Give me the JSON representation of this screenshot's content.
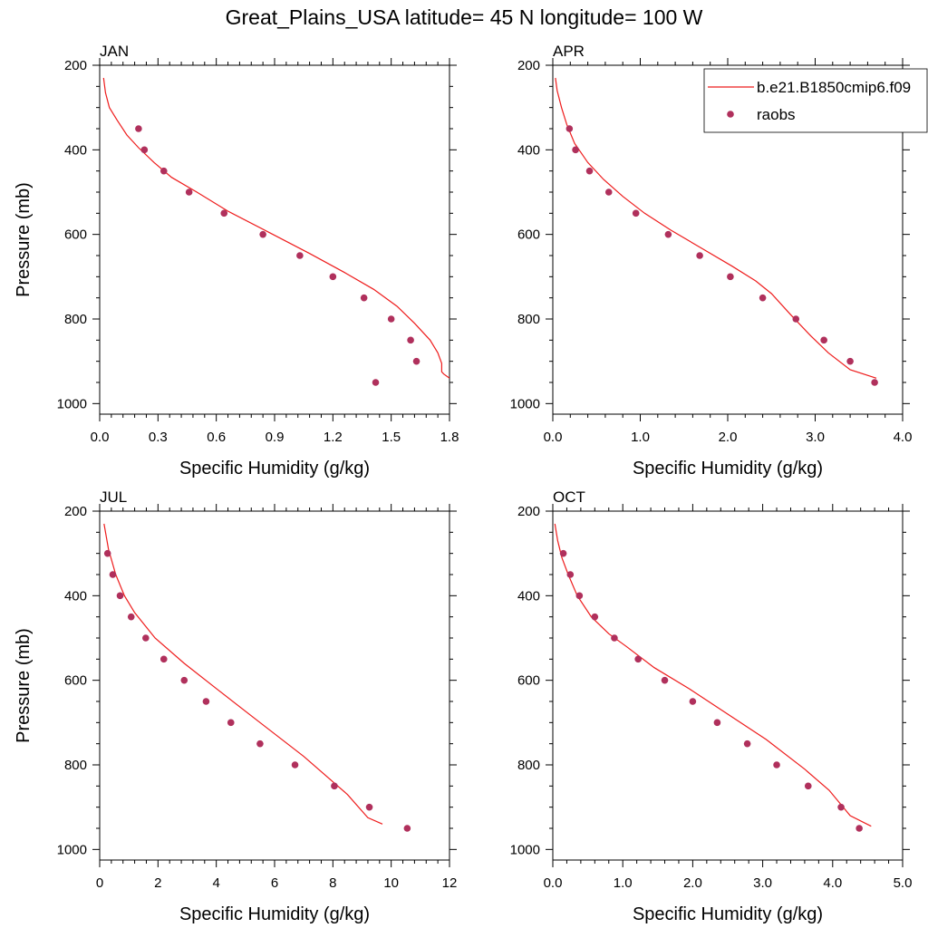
{
  "title": "Great_Plains_USA  latitude= 45 N longitude= 100 W",
  "legend": {
    "model_label": "b.e21.B1850cmip6.f09",
    "obs_label": "raobs"
  },
  "colors": {
    "model": "#ee1c1c",
    "obs": "#b0305c",
    "axis": "#000000"
  },
  "chart_data": [
    {
      "type": "line",
      "panel": "JAN",
      "xlabel": "Specific Humidity (g/kg)",
      "ylabel": "Pressure (mb)",
      "xlim": [
        0,
        1.8
      ],
      "ylim": [
        1025,
        200
      ],
      "y_inverted": true,
      "xticks": [
        0,
        0.3,
        0.6,
        0.9,
        1.2,
        1.5,
        1.8
      ],
      "xtick_labels": [
        "0.0",
        "0.3",
        "0.6",
        "0.9",
        "1.2",
        "1.5",
        "1.8"
      ],
      "yticks": [
        200,
        400,
        600,
        800,
        1000
      ],
      "ytick_labels": [
        "200",
        "400",
        "600",
        "800",
        "1000"
      ],
      "series": [
        {
          "name": "b.e21.B1850cmip6.f09",
          "kind": "line",
          "x": [
            0.02,
            0.03,
            0.05,
            0.09,
            0.14,
            0.2,
            0.28,
            0.37,
            0.5,
            0.66,
            0.87,
            1.08,
            1.26,
            1.41,
            1.53,
            1.62,
            1.7,
            1.74,
            1.76,
            1.76,
            1.77,
            1.8
          ],
          "y": [
            230,
            265,
            300,
            330,
            365,
            395,
            430,
            465,
            500,
            545,
            595,
            645,
            690,
            730,
            770,
            810,
            850,
            880,
            905,
            925,
            930,
            940
          ]
        },
        {
          "name": "raobs",
          "kind": "scatter",
          "x": [
            0.2,
            0.23,
            0.33,
            0.46,
            0.64,
            0.84,
            1.03,
            1.2,
            1.36,
            1.5,
            1.6,
            1.63,
            1.42
          ],
          "y": [
            350,
            400,
            450,
            500,
            550,
            600,
            650,
            700,
            750,
            800,
            850,
            900,
            950
          ]
        }
      ]
    },
    {
      "type": "line",
      "panel": "APR",
      "xlabel": "Specific Humidity (g/kg)",
      "ylabel": "",
      "xlim": [
        0,
        4.0
      ],
      "ylim": [
        1025,
        200
      ],
      "y_inverted": true,
      "xticks": [
        0,
        1,
        2,
        3,
        4
      ],
      "xtick_labels": [
        "0.0",
        "1.0",
        "2.0",
        "3.0",
        "4.0"
      ],
      "yticks": [
        200,
        400,
        600,
        800,
        1000
      ],
      "ytick_labels": [
        "200",
        "400",
        "600",
        "800",
        "1000"
      ],
      "series": [
        {
          "name": "b.e21.B1850cmip6.f09",
          "kind": "line",
          "x": [
            0.03,
            0.05,
            0.1,
            0.16,
            0.25,
            0.4,
            0.58,
            0.8,
            1.05,
            1.35,
            1.72,
            2.05,
            2.32,
            2.5,
            2.72,
            2.95,
            3.15,
            3.4,
            3.7
          ],
          "y": [
            230,
            260,
            300,
            340,
            385,
            430,
            470,
            510,
            550,
            590,
            635,
            675,
            710,
            740,
            790,
            840,
            880,
            920,
            940
          ]
        },
        {
          "name": "raobs",
          "kind": "scatter",
          "x": [
            0.19,
            0.26,
            0.42,
            0.64,
            0.95,
            1.32,
            1.68,
            2.03,
            2.4,
            2.78,
            3.1,
            3.4,
            3.68
          ],
          "y": [
            350,
            400,
            450,
            500,
            550,
            600,
            650,
            700,
            750,
            800,
            850,
            900,
            950
          ]
        }
      ]
    },
    {
      "type": "line",
      "panel": "JUL",
      "xlabel": "Specific Humidity (g/kg)",
      "ylabel": "Pressure (mb)",
      "xlim": [
        0,
        12
      ],
      "ylim": [
        1025,
        200
      ],
      "y_inverted": true,
      "xticks": [
        0,
        2,
        4,
        6,
        8,
        10,
        12
      ],
      "xtick_labels": [
        "0",
        "2",
        "4",
        "6",
        "8",
        "10",
        "12"
      ],
      "yticks": [
        200,
        400,
        600,
        800,
        1000
      ],
      "ytick_labels": [
        "200",
        "400",
        "600",
        "800",
        "1000"
      ],
      "series": [
        {
          "name": "b.e21.B1850cmip6.f09",
          "kind": "line",
          "x": [
            0.15,
            0.3,
            0.55,
            0.85,
            1.2,
            1.9,
            2.9,
            4.1,
            5.5,
            7.0,
            8.5,
            9.2,
            9.7
          ],
          "y": [
            230,
            290,
            350,
            400,
            440,
            500,
            560,
            625,
            700,
            780,
            870,
            925,
            940
          ]
        },
        {
          "name": "raobs",
          "kind": "scatter",
          "x": [
            0.27,
            0.45,
            0.7,
            1.08,
            1.58,
            2.2,
            2.9,
            3.65,
            4.5,
            5.5,
            6.7,
            8.05,
            9.25,
            10.55
          ],
          "y": [
            300,
            350,
            400,
            450,
            500,
            550,
            600,
            650,
            700,
            750,
            800,
            850,
            900,
            950
          ]
        }
      ]
    },
    {
      "type": "line",
      "panel": "OCT",
      "xlabel": "Specific Humidity (g/kg)",
      "ylabel": "",
      "xlim": [
        0,
        5.0
      ],
      "ylim": [
        1025,
        200
      ],
      "y_inverted": true,
      "xticks": [
        0,
        1,
        2,
        3,
        4,
        5
      ],
      "xtick_labels": [
        "0.0",
        "1.0",
        "2.0",
        "3.0",
        "4.0",
        "5.0"
      ],
      "yticks": [
        200,
        400,
        600,
        800,
        1000
      ],
      "ytick_labels": [
        "200",
        "400",
        "600",
        "800",
        "1000"
      ],
      "series": [
        {
          "name": "b.e21.B1850cmip6.f09",
          "kind": "line",
          "x": [
            0.03,
            0.07,
            0.13,
            0.22,
            0.35,
            0.55,
            0.8,
            1.05,
            1.45,
            1.95,
            2.5,
            3.05,
            3.6,
            3.95,
            4.25,
            4.55
          ],
          "y": [
            230,
            270,
            310,
            350,
            400,
            450,
            490,
            520,
            570,
            620,
            680,
            740,
            810,
            860,
            920,
            945
          ]
        },
        {
          "name": "raobs",
          "kind": "scatter",
          "x": [
            0.15,
            0.25,
            0.38,
            0.6,
            0.88,
            1.22,
            1.6,
            2.0,
            2.35,
            2.78,
            3.2,
            3.65,
            4.12,
            4.38
          ],
          "y": [
            300,
            350,
            400,
            450,
            500,
            550,
            600,
            650,
            700,
            750,
            800,
            850,
            900,
            950
          ]
        }
      ]
    }
  ]
}
